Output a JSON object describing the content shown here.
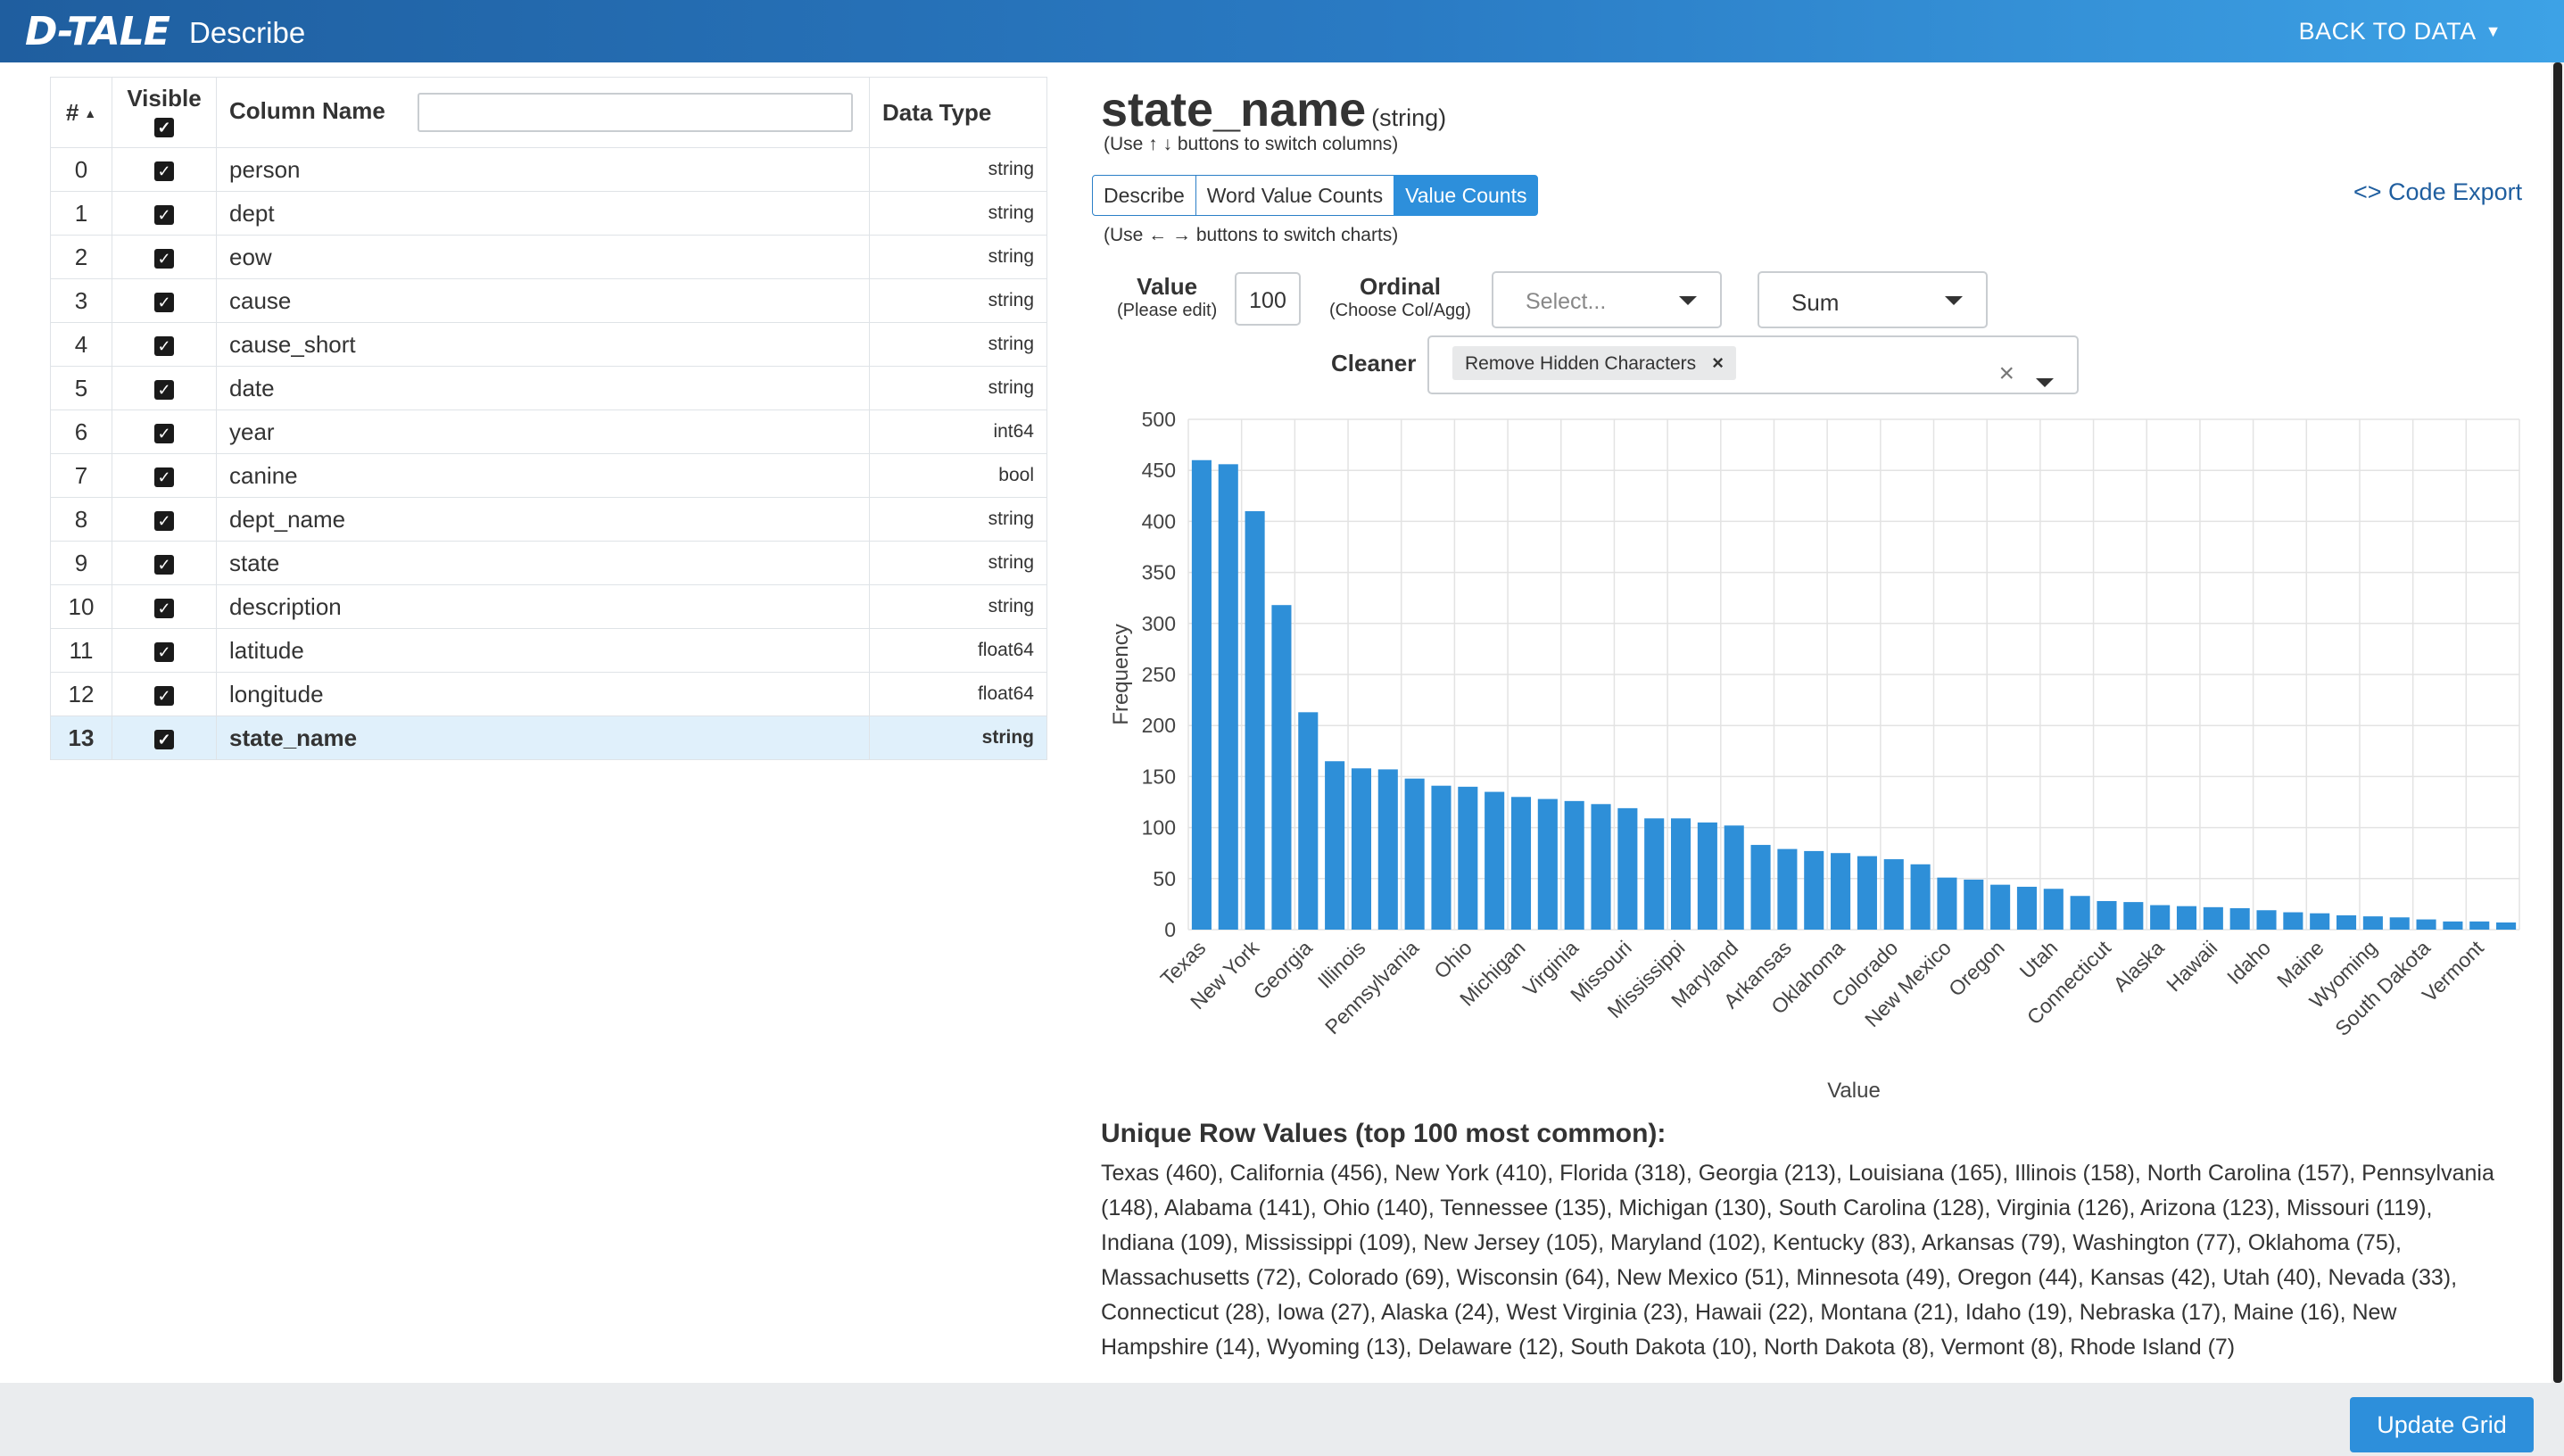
{
  "header": {
    "logo": "D-TALE",
    "title": "Describe",
    "back_label": "BACK TO DATA"
  },
  "columns_table": {
    "headers": {
      "index": "#",
      "visible": "Visible",
      "name": "Column Name",
      "type": "Data Type"
    },
    "rows": [
      {
        "index": "0",
        "name": "person",
        "type": "string"
      },
      {
        "index": "1",
        "name": "dept",
        "type": "string"
      },
      {
        "index": "2",
        "name": "eow",
        "type": "string"
      },
      {
        "index": "3",
        "name": "cause",
        "type": "string"
      },
      {
        "index": "4",
        "name": "cause_short",
        "type": "string"
      },
      {
        "index": "5",
        "name": "date",
        "type": "string"
      },
      {
        "index": "6",
        "name": "year",
        "type": "int64"
      },
      {
        "index": "7",
        "name": "canine",
        "type": "bool"
      },
      {
        "index": "8",
        "name": "dept_name",
        "type": "string"
      },
      {
        "index": "9",
        "name": "state",
        "type": "string"
      },
      {
        "index": "10",
        "name": "description",
        "type": "string"
      },
      {
        "index": "11",
        "name": "latitude",
        "type": "float64"
      },
      {
        "index": "12",
        "name": "longitude",
        "type": "float64"
      },
      {
        "index": "13",
        "name": "state_name",
        "type": "string"
      }
    ]
  },
  "details": {
    "column": "state_name",
    "dtype": "(string)",
    "col_hint": "(Use ↑ ↓ buttons to switch columns)",
    "tabs": [
      "Describe",
      "Word Value Counts",
      "Value Counts"
    ],
    "code_export": "<> Code Export",
    "chart_hint": "(Use ← → buttons to switch charts)",
    "value_label": "Value",
    "value_sub": "(Please edit)",
    "value_input": "100",
    "ordinal_label": "Ordinal",
    "ordinal_sub": "(Choose Col/Agg)",
    "ordinal_placeholder": "Select...",
    "agg_value": "Sum",
    "cleaner_label": "Cleaner",
    "cleaner_chip": "Remove Hidden Characters",
    "unique_title": "Unique Row Values (top 100 most common):",
    "unique_text": "Texas (460), California (456), New York (410), Florida (318), Georgia (213), Louisiana (165), Illinois (158), North Carolina (157), Pennsylvania (148), Alabama (141), Ohio (140), Tennessee (135), Michigan (130), South Carolina (128), Virginia (126), Arizona (123), Missouri (119), Indiana (109), Mississippi (109), New Jersey (105), Maryland (102), Kentucky (83), Arkansas (79), Washington (77), Oklahoma (75), Massachusetts (72), Colorado (69), Wisconsin (64), New Mexico (51), Minnesota (49), Oregon (44), Kansas (42), Utah (40), Nevada (33), Connecticut (28), Iowa (27), Alaska (24), West Virginia (23), Hawaii (22), Montana (21), Idaho (19), Nebraska (17), Maine (16), New Hampshire (14), Wyoming (13), Delaware (12), South Dakota (10), North Dakota (8), Vermont (8), Rhode Island (7)"
  },
  "chart_data": {
    "type": "bar",
    "xlabel": "Value",
    "ylabel": "Frequency",
    "ylim": [
      0,
      500
    ],
    "yticks": [
      0,
      50,
      100,
      150,
      200,
      250,
      300,
      350,
      400,
      450,
      500
    ],
    "grid": true,
    "color": "#2e8fd8",
    "categories": [
      "Texas",
      "California",
      "New York",
      "Florida",
      "Georgia",
      "Louisiana",
      "Illinois",
      "North Carolina",
      "Pennsylvania",
      "Alabama",
      "Ohio",
      "Tennessee",
      "Michigan",
      "South Carolina",
      "Virginia",
      "Arizona",
      "Missouri",
      "Indiana",
      "Mississippi",
      "New Jersey",
      "Maryland",
      "Kentucky",
      "Arkansas",
      "Washington",
      "Oklahoma",
      "Massachusetts",
      "Colorado",
      "Wisconsin",
      "New Mexico",
      "Minnesota",
      "Oregon",
      "Kansas",
      "Utah",
      "Nevada",
      "Connecticut",
      "Iowa",
      "Alaska",
      "West Virginia",
      "Hawaii",
      "Montana",
      "Idaho",
      "Nebraska",
      "Maine",
      "New Hampshire",
      "Wyoming",
      "Delaware",
      "South Dakota",
      "North Dakota",
      "Vermont",
      "Rhode Island"
    ],
    "values": [
      460,
      456,
      410,
      318,
      213,
      165,
      158,
      157,
      148,
      141,
      140,
      135,
      130,
      128,
      126,
      123,
      119,
      109,
      109,
      105,
      102,
      83,
      79,
      77,
      75,
      72,
      69,
      64,
      51,
      49,
      44,
      42,
      40,
      33,
      28,
      27,
      24,
      23,
      22,
      21,
      19,
      17,
      16,
      14,
      13,
      12,
      10,
      8,
      8,
      7
    ],
    "tick_labels": [
      "Texas",
      "New York",
      "Georgia",
      "Illinois",
      "Pennsylvania",
      "Ohio",
      "Michigan",
      "Virginia",
      "Missouri",
      "Mississippi",
      "Maryland",
      "Arkansas",
      "Oklahoma",
      "Colorado",
      "New Mexico",
      "Oregon",
      "Utah",
      "Connecticut",
      "Alaska",
      "Hawaii",
      "Idaho",
      "Maine",
      "Wyoming",
      "South Dakota",
      "Vermont"
    ]
  },
  "footer": {
    "update_label": "Update Grid"
  }
}
